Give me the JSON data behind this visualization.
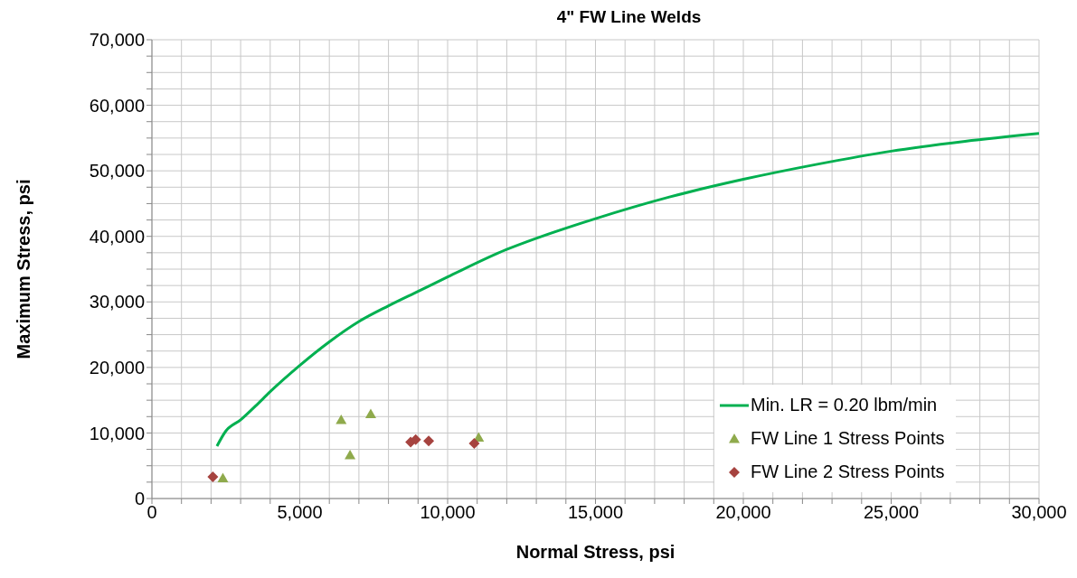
{
  "chart_data": {
    "type": "scatter",
    "title": "4\" FW Line Welds",
    "xlabel": "Normal Stress, psi",
    "ylabel": "Maximum Stress, psi",
    "series": [
      {
        "name": "Min. LR = 0.20 lbm/min",
        "type": "line",
        "color": "#00b050",
        "marker": "none",
        "line_style": "solid",
        "x": [
          2200,
          2500,
          3000,
          3500,
          4000,
          5000,
          6000,
          7000,
          8000,
          9000,
          10000,
          12000,
          13000,
          15000,
          17500,
          20000,
          22500,
          25000,
          27500,
          30000
        ],
        "values": [
          8000,
          10300,
          12000,
          14100,
          16300,
          20300,
          23900,
          27000,
          29400,
          31600,
          33800,
          38000,
          39700,
          42700,
          46000,
          48700,
          51000,
          53000,
          54500,
          55700
        ]
      },
      {
        "name": "FW Line 1 Stress Points",
        "color": "#8faa4c",
        "marker": "triangle",
        "x": [
          2400,
          6400,
          7400,
          6700,
          11050
        ],
        "values": [
          3100,
          12000,
          12900,
          6600,
          9300
        ]
      },
      {
        "name": "FW Line 2 Stress Points",
        "color": "#a6433f",
        "marker": "diamond",
        "x": [
          2060,
          8750,
          8920,
          9360,
          10900
        ],
        "values": [
          3300,
          8600,
          9000,
          8800,
          8400
        ]
      }
    ],
    "xlim": [
      0,
      30000
    ],
    "ylim": [
      0,
      70000
    ],
    "xticks": [
      {
        "value": 0,
        "label": "0"
      },
      {
        "value": 1000,
        "label": null
      },
      {
        "value": 2000,
        "label": null
      },
      {
        "value": 3000,
        "label": null
      },
      {
        "value": 4000,
        "label": null
      },
      {
        "value": 5000,
        "label": "5,000"
      },
      {
        "value": 6000,
        "label": null
      },
      {
        "value": 7000,
        "label": null
      },
      {
        "value": 8000,
        "label": null
      },
      {
        "value": 9000,
        "label": null
      },
      {
        "value": 10000,
        "label": "10,000"
      },
      {
        "value": 11000,
        "label": null
      },
      {
        "value": 12000,
        "label": null
      },
      {
        "value": 13000,
        "label": null
      },
      {
        "value": 14000,
        "label": null
      },
      {
        "value": 15000,
        "label": "15,000"
      },
      {
        "value": 16000,
        "label": null
      },
      {
        "value": 17000,
        "label": null
      },
      {
        "value": 18000,
        "label": null
      },
      {
        "value": 19000,
        "label": null
      },
      {
        "value": 20000,
        "label": "20,000"
      },
      {
        "value": 21000,
        "label": null
      },
      {
        "value": 22000,
        "label": null
      },
      {
        "value": 23000,
        "label": null
      },
      {
        "value": 24000,
        "label": null
      },
      {
        "value": 25000,
        "label": "25,000"
      },
      {
        "value": 26000,
        "label": null
      },
      {
        "value": 27000,
        "label": null
      },
      {
        "value": 28000,
        "label": null
      },
      {
        "value": 29000,
        "label": null
      },
      {
        "value": 30000,
        "label": "30,000"
      }
    ],
    "yticks": [
      {
        "value": 0,
        "label": "0"
      },
      {
        "value": 2500,
        "label": null
      },
      {
        "value": 5000,
        "label": null
      },
      {
        "value": 7500,
        "label": null
      },
      {
        "value": 10000,
        "label": "10,000"
      },
      {
        "value": 12500,
        "label": null
      },
      {
        "value": 15000,
        "label": null
      },
      {
        "value": 17500,
        "label": null
      },
      {
        "value": 20000,
        "label": "20,000"
      },
      {
        "value": 22500,
        "label": null
      },
      {
        "value": 25000,
        "label": null
      },
      {
        "value": 27500,
        "label": null
      },
      {
        "value": 30000,
        "label": "30,000"
      },
      {
        "value": 32500,
        "label": null
      },
      {
        "value": 35000,
        "label": null
      },
      {
        "value": 37500,
        "label": null
      },
      {
        "value": 40000,
        "label": "40,000"
      },
      {
        "value": 42500,
        "label": null
      },
      {
        "value": 45000,
        "label": null
      },
      {
        "value": 47500,
        "label": null
      },
      {
        "value": 50000,
        "label": "50,000"
      },
      {
        "value": 52500,
        "label": null
      },
      {
        "value": 55000,
        "label": null
      },
      {
        "value": 57500,
        "label": null
      },
      {
        "value": 60000,
        "label": "60,000"
      },
      {
        "value": 62500,
        "label": null
      },
      {
        "value": 65000,
        "label": null
      },
      {
        "value": 67500,
        "label": null
      },
      {
        "value": 70000,
        "label": "70,000"
      }
    ],
    "grid": true,
    "legend": "bottom right"
  }
}
